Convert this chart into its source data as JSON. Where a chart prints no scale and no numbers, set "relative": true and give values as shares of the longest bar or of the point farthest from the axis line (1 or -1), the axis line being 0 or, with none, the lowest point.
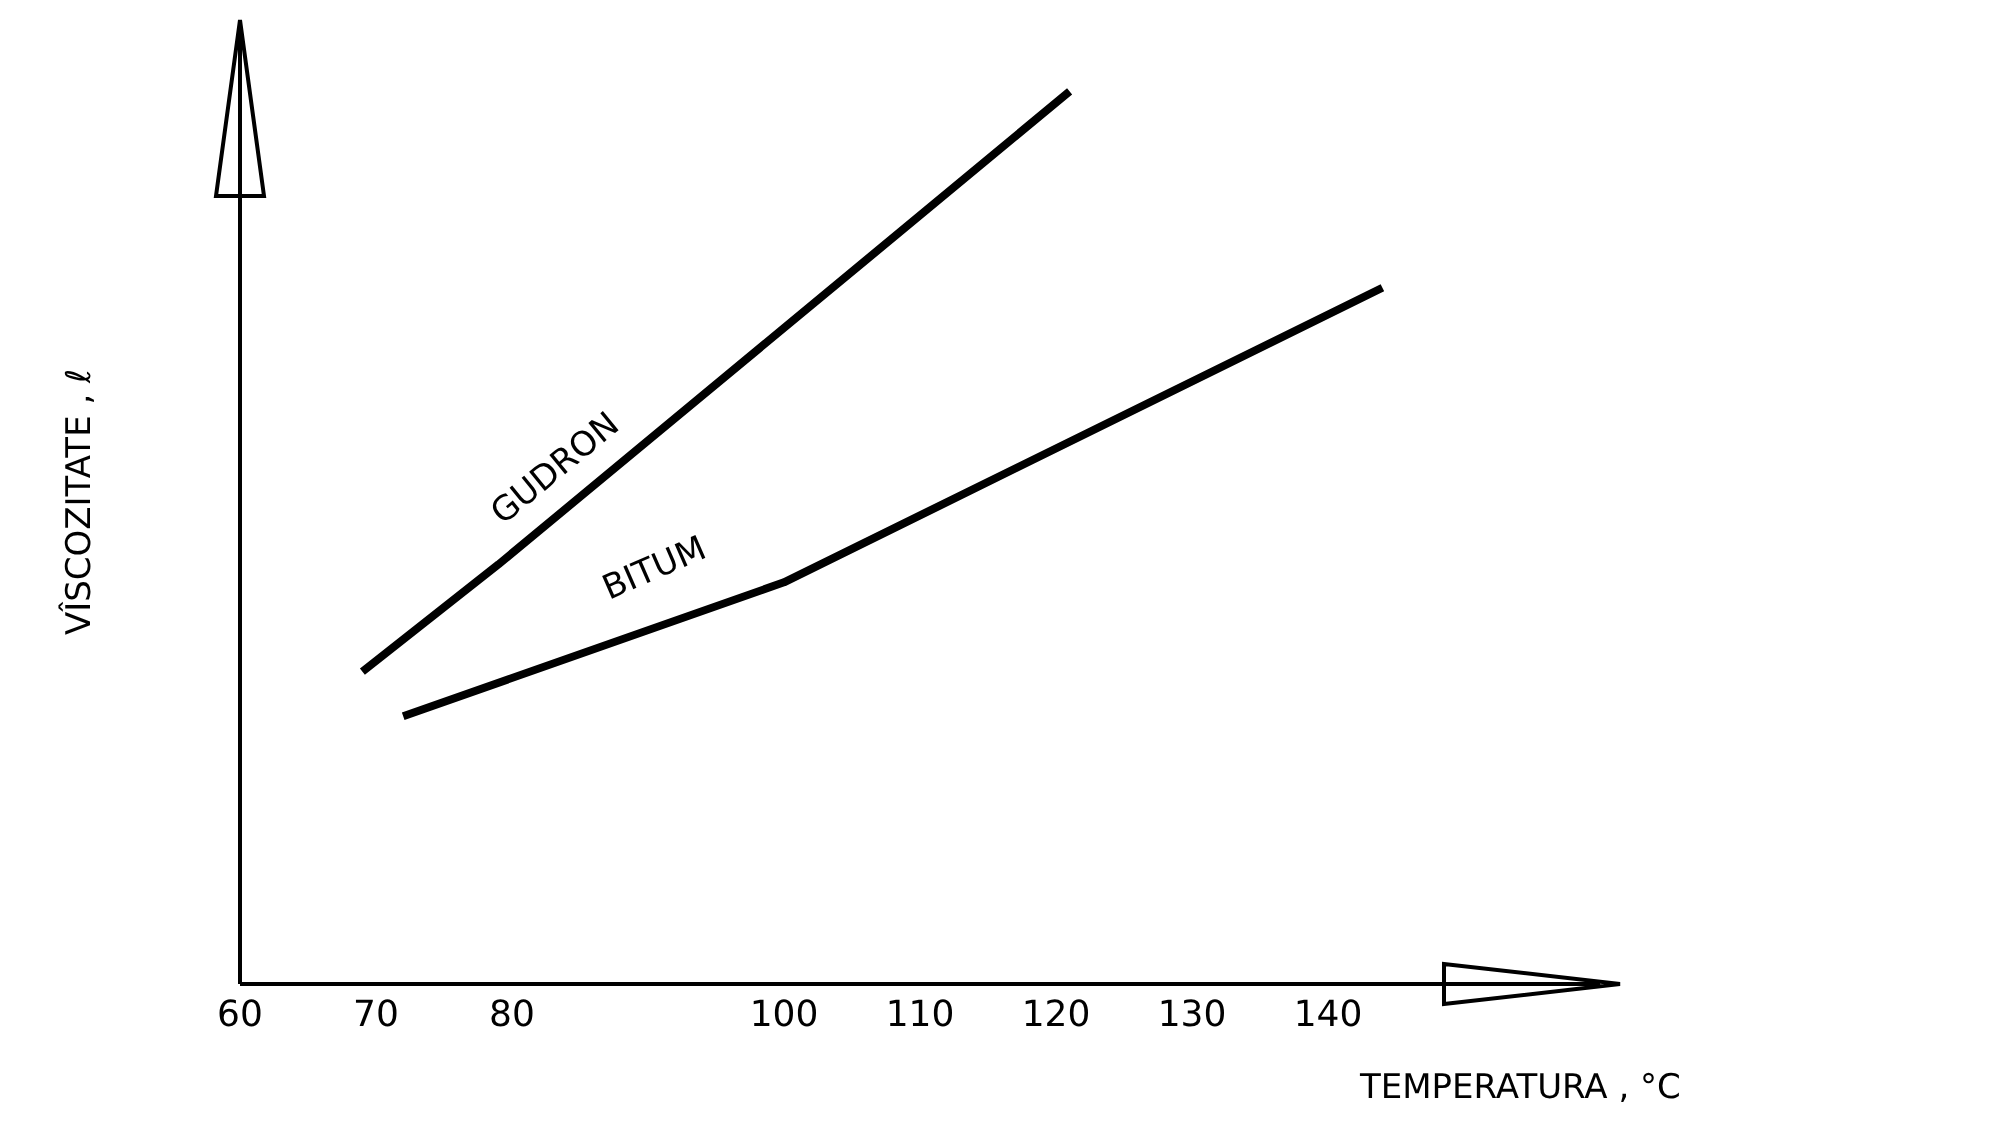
{
  "chart_data": {
    "type": "line",
    "relative": true,
    "xlabel": "TEMPERATURA , °C",
    "ylabel": "VÎSCOZITATE , ℓ",
    "xlim": [
      60,
      160
    ],
    "xticks": [
      60,
      70,
      80,
      100,
      110,
      120,
      130,
      140
    ],
    "marker": "none",
    "line_style": "solid",
    "series": [
      {
        "name": "GUDRON",
        "color": "#000000",
        "x": [
          69,
          79,
          121
        ],
        "values": [
          0.35,
          0.47,
          1
        ]
      },
      {
        "name": "BITUM",
        "color": "#000000",
        "x": [
          72,
          100,
          144
        ],
        "values": [
          0.3,
          0.45,
          0.78
        ]
      }
    ]
  }
}
